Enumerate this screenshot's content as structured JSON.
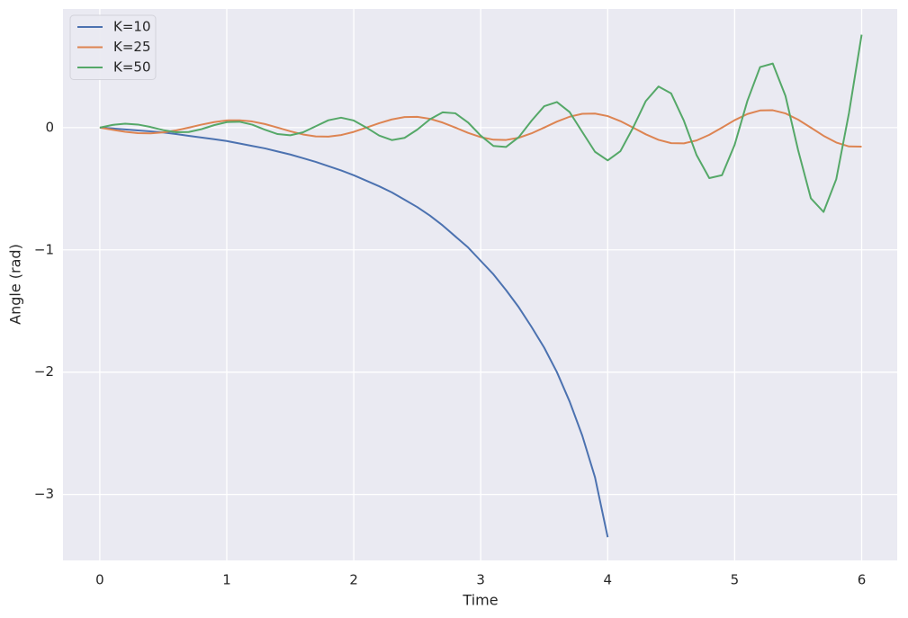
{
  "chart_data": {
    "type": "line",
    "x_label": "Time",
    "y_label": "Angle (rad)",
    "x": [
      0,
      0.1,
      0.2,
      0.3,
      0.4,
      0.5,
      0.6,
      0.7,
      0.8,
      0.9,
      1,
      1.1,
      1.2,
      1.3,
      1.4,
      1.5,
      1.6,
      1.7,
      1.8,
      1.9,
      2,
      2.1,
      2.2,
      2.3,
      2.4,
      2.5,
      2.6,
      2.7,
      2.8,
      2.9,
      3,
      3.1,
      3.2,
      3.3,
      3.4,
      3.5,
      3.6,
      3.7,
      3.8,
      3.9,
      4,
      4.1,
      4.2,
      4.3,
      4.4,
      4.5,
      4.6,
      4.7,
      4.8,
      4.9,
      5,
      5.1,
      5.2,
      5.3,
      5.4,
      5.5,
      5.6,
      5.7,
      5.8,
      5.9,
      6
    ],
    "series": [
      {
        "name": "K=10",
        "color": "#4c72b0",
        "values": [
          0,
          -0.007,
          -0.015,
          -0.023,
          -0.031,
          -0.04,
          -0.053,
          -0.067,
          -0.081,
          -0.095,
          -0.11,
          -0.13,
          -0.15,
          -0.17,
          -0.195,
          -0.22,
          -0.25,
          -0.28,
          -0.315,
          -0.35,
          -0.39,
          -0.435,
          -0.48,
          -0.53,
          -0.59,
          -0.65,
          -0.72,
          -0.8,
          -0.89,
          -0.98,
          -1.09,
          -1.2,
          -1.33,
          -1.47,
          -1.63,
          -1.8,
          -2.0,
          -2.24,
          -2.52,
          -2.86,
          -3.35,
          null,
          null,
          null,
          null,
          null,
          null,
          null,
          null,
          null,
          null,
          null,
          null,
          null,
          null,
          null,
          null,
          null,
          null,
          null,
          null
        ]
      },
      {
        "name": "K=25",
        "color": "#dd8452",
        "values": [
          0,
          -0.018,
          -0.034,
          -0.045,
          -0.047,
          -0.039,
          -0.023,
          0,
          0.024,
          0.045,
          0.059,
          0.06,
          0.05,
          0.029,
          0,
          -0.03,
          -0.056,
          -0.072,
          -0.074,
          -0.061,
          -0.035,
          0,
          0.036,
          0.067,
          0.086,
          0.088,
          0.072,
          0.041,
          0,
          -0.043,
          -0.078,
          -0.099,
          -0.101,
          -0.083,
          -0.047,
          0,
          0.049,
          0.089,
          0.113,
          0.115,
          0.094,
          0.053,
          0,
          -0.055,
          -0.1,
          -0.127,
          -0.129,
          -0.105,
          -0.059,
          0,
          0.061,
          0.111,
          0.14,
          0.142,
          0.116,
          0.065,
          0,
          -0.067,
          -0.122,
          -0.154,
          -0.156
        ]
      },
      {
        "name": "K=50",
        "color": "#55a868",
        "values": [
          0,
          0.022,
          0.032,
          0.025,
          0.005,
          -0.021,
          -0.038,
          -0.036,
          -0.013,
          0.02,
          0.045,
          0.048,
          0.024,
          -0.017,
          -0.053,
          -0.063,
          -0.039,
          0.011,
          0.06,
          0.081,
          0.058,
          0,
          -0.065,
          -0.102,
          -0.084,
          -0.017,
          0.068,
          0.125,
          0.117,
          0.042,
          -0.066,
          -0.15,
          -0.158,
          -0.078,
          0.056,
          0.175,
          0.209,
          0.127,
          -0.036,
          -0.198,
          -0.268,
          -0.193,
          0,
          0.217,
          0.336,
          0.279,
          0.056,
          -0.225,
          -0.413,
          -0.389,
          -0.14,
          0.218,
          0.495,
          0.524,
          0.259,
          -0.186,
          -0.578,
          -0.69,
          -0.422,
          0.118,
          0.76
        ]
      }
    ],
    "xlim": [
      -0.29,
      6.28
    ],
    "ylim": [
      -3.54,
      0.97
    ],
    "xticks": [
      0,
      1,
      2,
      3,
      4,
      5,
      6
    ],
    "yticks": [
      {
        "value": -3,
        "label": "−3"
      },
      {
        "value": -2,
        "label": "−2"
      },
      {
        "value": -1,
        "label": "−1"
      },
      0
    ],
    "grid": true,
    "legend": "upper-left"
  }
}
